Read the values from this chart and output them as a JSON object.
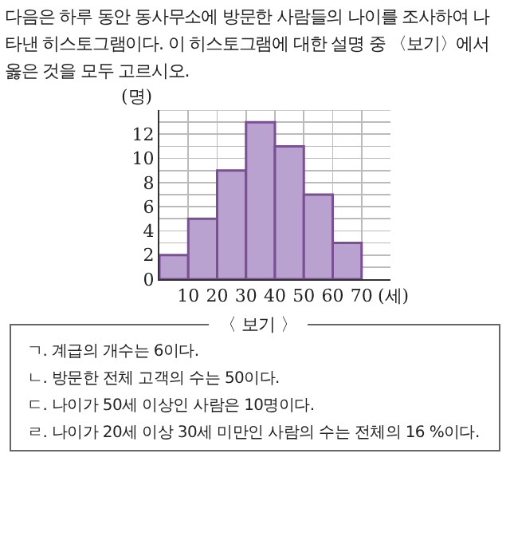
{
  "chart_data": {
    "type": "histogram",
    "title": "다음은 하루 동안 동사무소에 방문한 사람들의 나이를 조사하여 나타낸 히스토그램이다. 이 히스토그램에 대한 설명 중 〈보기〉에서 옳은 것을 모두 고르시오.",
    "xlabel": "(세)",
    "ylabel": "(명)",
    "bins": [
      0,
      10,
      20,
      30,
      40,
      50,
      60,
      70
    ],
    "values": [
      2,
      5,
      9,
      13,
      11,
      7,
      3
    ],
    "color": "#b9a2cf",
    "xlim": [
      0,
      80
    ],
    "xticks": [
      10,
      20,
      30,
      40,
      50,
      60,
      70
    ],
    "ylim": [
      0,
      14
    ],
    "yticks": [
      0,
      {
        "value": 1,
        "label": null
      },
      2,
      {
        "value": 3,
        "label": null
      },
      4,
      {
        "value": 5,
        "label": null
      },
      6,
      {
        "value": 7,
        "label": null
      },
      8,
      {
        "value": 9,
        "label": null
      },
      10,
      {
        "value": 11,
        "label": null
      },
      12,
      {
        "value": 13,
        "label": null
      }
    ],
    "grid": true,
    "annotations": [
      "〈 보기 〉",
      "ㄱ. 계급의 개수는 6이다.",
      "ㄴ. 방문한 전체 고객의 수는 50이다.",
      "ㄷ. 나이가 50세 이상인 사람은 10명이다.",
      "ㄹ. 나이가 20세 이상 30세 미만인 사람의 수는 전체의 16 %이다."
    ]
  }
}
